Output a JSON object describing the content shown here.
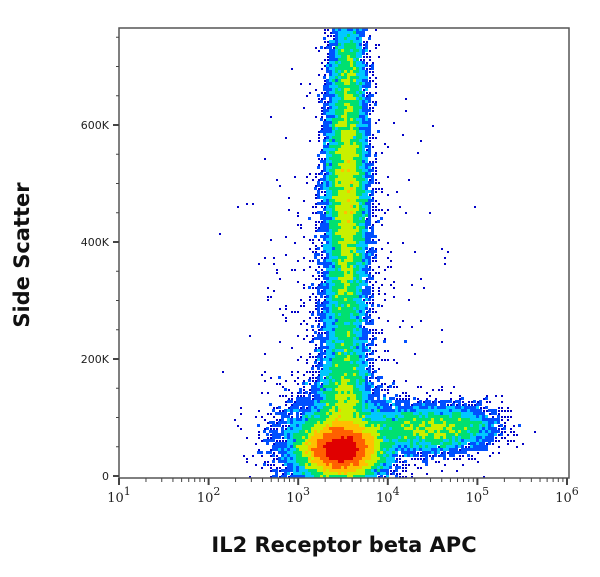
{
  "chart_data": {
    "type": "scatter",
    "subtype": "flow-cytometry-density-dot-plot",
    "title": "",
    "xlabel": "IL2 Receptor beta APC",
    "ylabel": "Side Scatter",
    "x_scale": "log",
    "xlim": [
      10,
      1000000
    ],
    "ylim": [
      0,
      760000
    ],
    "x_ticks": [
      {
        "value": 10,
        "base": "10",
        "exp": "1"
      },
      {
        "value": 100,
        "base": "10",
        "exp": "2"
      },
      {
        "value": 1000,
        "base": "10",
        "exp": "3"
      },
      {
        "value": 10000,
        "base": "10",
        "exp": "4"
      },
      {
        "value": 100000,
        "base": "10",
        "exp": "5"
      },
      {
        "value": 1000000,
        "base": "10",
        "exp": "6"
      }
    ],
    "y_ticks": [
      {
        "value": 0,
        "label": "0"
      },
      {
        "value": 200000,
        "label": "200K"
      },
      {
        "value": 400000,
        "label": "400K"
      },
      {
        "value": 600000,
        "label": "600K"
      }
    ],
    "grid": false,
    "legend": null,
    "color_scale": [
      "#0000c8",
      "#0050ff",
      "#00c8ff",
      "#00e070",
      "#c8f000",
      "#ffc000",
      "#ff6000",
      "#e00000"
    ],
    "populations": [
      {
        "name": "main-low-SSC-cluster",
        "x_center": 3000,
        "y_center": 50000,
        "x_spread_log": 0.22,
        "y_spread": 25000,
        "peak_color": "red",
        "relative_density": 1.0
      },
      {
        "name": "high-SSC-vertical-cluster",
        "x_center": 3500,
        "y_center": 480000,
        "x_spread_log": 0.12,
        "y_spread": 120000,
        "peak_color": "yellow-green",
        "relative_density": 0.55
      },
      {
        "name": "IL2Rb-positive-tail",
        "x_center": 40000,
        "y_center": 80000,
        "x_spread_log": 0.35,
        "y_spread": 20000,
        "peak_color": "cyan",
        "relative_density": 0.25
      }
    ]
  }
}
